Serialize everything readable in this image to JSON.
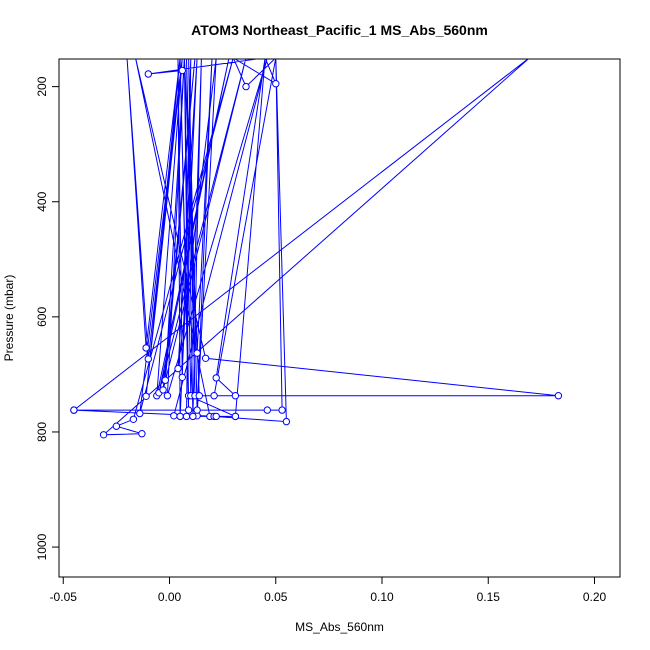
{
  "chart_data": {
    "type": "line",
    "title": "ATOM3 Northeast_Pacific_1 MS_Abs_560nm",
    "xlabel": "MS_Abs_560nm",
    "ylabel": "Pressure (mbar)",
    "xlim": [
      -0.052,
      0.212
    ],
    "ylim": [
      1052,
      152
    ],
    "y_reversed": true,
    "grid": false,
    "legend": "none",
    "x_ticks": [
      -0.05,
      0.0,
      0.05,
      0.1,
      0.15,
      0.2
    ],
    "x_tick_labels": [
      "-0.05",
      "0.00",
      "0.05",
      "0.10",
      "0.15",
      "0.20"
    ],
    "y_ticks": [
      200,
      400,
      600,
      800,
      1000
    ],
    "y_tick_labels": [
      "200",
      "400",
      "600",
      "800",
      "1000"
    ],
    "color": "#0000ff",
    "series": [
      {
        "points": [
          [
            -0.045,
            762
          ],
          [
            0.17,
            148
          ],
          [
            -0.031,
            805
          ],
          [
            -0.013,
            803
          ],
          [
            -0.025,
            790
          ],
          [
            -0.017,
            778
          ],
          [
            0.03,
            150
          ],
          [
            -0.014,
            768
          ],
          [
            0.006,
            150
          ],
          [
            -0.011,
            738
          ],
          [
            0.005,
            150
          ],
          [
            -0.011,
            654
          ],
          [
            -0.02,
            150
          ],
          [
            -0.01,
            673
          ],
          [
            0.006,
            150
          ],
          [
            -0.006,
            737
          ],
          [
            0.028,
            150
          ],
          [
            -0.005,
            732
          ],
          [
            0.036,
            150
          ],
          [
            -0.003,
            727
          ],
          [
            0.012,
            150
          ],
          [
            -0.002,
            710
          ],
          [
            0.007,
            150
          ],
          [
            -0.001,
            737
          ],
          [
            0.046,
            150
          ],
          [
            0.002,
            772
          ],
          [
            0.013,
            772
          ],
          [
            0.022,
            150
          ],
          [
            0.004,
            690
          ],
          [
            0.013,
            150
          ],
          [
            0.005,
            773
          ],
          [
            0.004,
            150
          ],
          [
            0.006,
            705
          ],
          [
            0.01,
            150
          ],
          [
            0.008,
            773
          ],
          [
            0.031,
            773
          ],
          [
            0.009,
            737
          ],
          [
            0.005,
            150
          ],
          [
            0.009,
            762
          ],
          [
            0.007,
            150
          ],
          [
            0.01,
            737
          ],
          [
            0.015,
            150
          ],
          [
            0.011,
            773
          ],
          [
            0.008,
            150
          ],
          [
            0.012,
            737
          ],
          [
            0.009,
            150
          ],
          [
            0.013,
            762
          ],
          [
            0.02,
            150
          ],
          [
            0.013,
            663
          ],
          [
            0.007,
            150
          ],
          [
            0.014,
            737
          ],
          [
            0.183,
            737
          ],
          [
            0.017,
            672
          ],
          [
            -0.016,
            150
          ],
          [
            0.019,
            773
          ],
          [
            0.021,
            773
          ],
          [
            0.055,
            782
          ],
          [
            0.05,
            150
          ],
          [
            0.021,
            737
          ],
          [
            0.031,
            737
          ],
          [
            0.022,
            706
          ],
          [
            0.045,
            150
          ],
          [
            0.031,
            773
          ],
          [
            0.022,
            773
          ],
          [
            -0.045,
            762
          ],
          [
            0.046,
            762
          ],
          [
            0.053,
            762
          ],
          [
            0.05,
            150
          ],
          [
            0.036,
            200
          ],
          [
            0.03,
            150
          ],
          [
            0.05,
            195
          ],
          [
            0.045,
            150
          ],
          [
            -0.01,
            178
          ],
          [
            0.006,
            172
          ]
        ]
      }
    ]
  }
}
